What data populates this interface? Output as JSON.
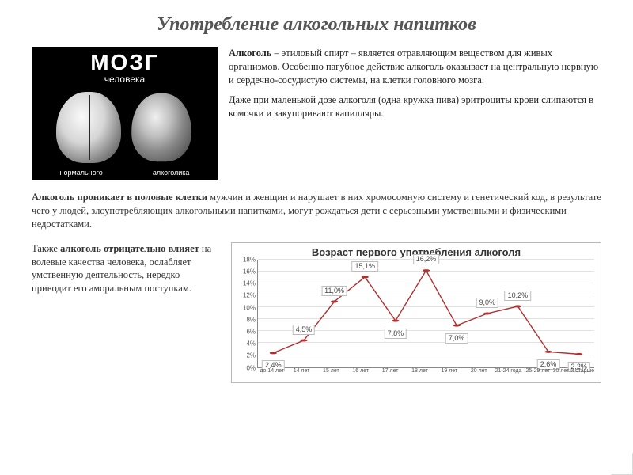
{
  "title": "Употребление алкогольных напитков",
  "brain": {
    "heading": "МОЗГ",
    "subheading": "человека",
    "label_normal": "нормального",
    "label_alcoholic": "алкоголика"
  },
  "para1": {
    "lead": "Алкоголь",
    "rest": " – этиловый спирт – является отравляющим веществом для живых организмов. Особенно пагубное действие алкоголь оказывает на центральную нервную и сердечно-сосудистую системы, на клетки головного мозга."
  },
  "para2": "Даже при маленькой дозе алкоголя (одна кружка пива) эритроциты крови слипаются в комочки и закупоривают капилляры.",
  "para3": {
    "lead": "Алкоголь проникает в половые клетки",
    "rest": " мужчин и женщин и нарушает в них хромосомную систему и генетический код, в результате чего у людей, злоупотребляющих алкогольными напитками, могут рождаться дети с серьезными умственными и физическими недостатками."
  },
  "para4": {
    "pre": "Также ",
    "bold": "алкоголь отрицательно влияет",
    "rest": " на волевые качества человека, ослабляет умственную деятельность, нередко приводит его аморальным поступкам."
  },
  "chart": {
    "type": "line",
    "title": "Возраст первого употребления алкоголя",
    "y_max": 18,
    "y_ticks": [
      0,
      2,
      4,
      6,
      8,
      10,
      12,
      14,
      16,
      18
    ],
    "grid_color": "#e2e2e2",
    "axis_color": "#888888",
    "line_color": "#b03030",
    "marker_color": "#b03030",
    "background": "#ffffff",
    "label_box_border": "#bdbdbd",
    "categories": [
      "до 14 лет",
      "14 лет",
      "15 лет",
      "16 лет",
      "17 лет",
      "18 лет",
      "19 лет",
      "20 лет",
      "21-24 года",
      "25-29 лет",
      "30 лет и старше"
    ],
    "values": [
      2.4,
      4.5,
      11.0,
      15.1,
      7.8,
      16.2,
      7.0,
      9.0,
      10.2,
      2.6,
      2.2
    ],
    "labels": [
      "2,4%",
      "4,5%",
      "11,0%",
      "15,1%",
      "7,8%",
      "16,2%",
      "7,0%",
      "9,0%",
      "10,2%",
      "2,6%",
      "2,2%"
    ],
    "label_offsets_y": [
      14,
      -16,
      -16,
      -16,
      14,
      -16,
      14,
      -16,
      -16,
      14,
      14
    ]
  }
}
